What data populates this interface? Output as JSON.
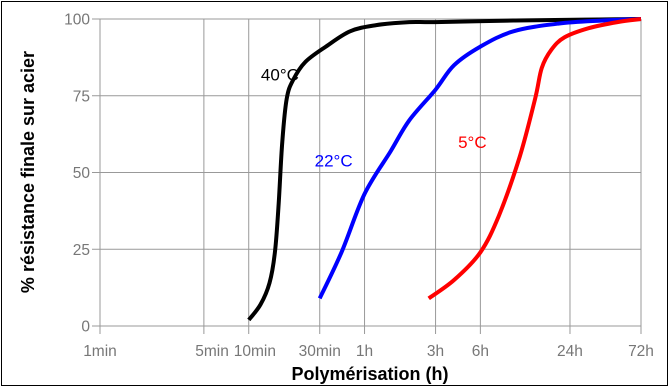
{
  "chart_data": {
    "type": "line",
    "title": "",
    "xlabel": "Polymérisation (h)",
    "ylabel": "% résistance finale sur acier",
    "x_scale": "log",
    "x_unit": "hours",
    "xlim": [
      0.0167,
      72
    ],
    "ylim": [
      0,
      100
    ],
    "x_ticks": [
      {
        "label": "1min",
        "value": 0.0167
      },
      {
        "label": "5min",
        "value": 0.0833
      },
      {
        "label": "10min",
        "value": 0.1667
      },
      {
        "label": "30min",
        "value": 0.5
      },
      {
        "label": "1h",
        "value": 1
      },
      {
        "label": "3h",
        "value": 3
      },
      {
        "label": "6h",
        "value": 6
      },
      {
        "label": "24h",
        "value": 24
      },
      {
        "label": "72h",
        "value": 72
      }
    ],
    "y_ticks": [
      0,
      25,
      50,
      75,
      100
    ],
    "grid": true,
    "series": [
      {
        "name": "40°C",
        "color": "#000000",
        "label_at": {
          "x": 0.27,
          "y": 80
        },
        "points": [
          [
            0.167,
            2
          ],
          [
            0.2,
            7
          ],
          [
            0.23,
            14
          ],
          [
            0.25,
            24
          ],
          [
            0.265,
            40
          ],
          [
            0.28,
            60
          ],
          [
            0.3,
            74
          ],
          [
            0.33,
            80
          ],
          [
            0.4,
            86
          ],
          [
            0.55,
            91
          ],
          [
            0.8,
            96
          ],
          [
            1.2,
            98
          ],
          [
            2,
            99
          ],
          [
            3,
            99
          ],
          [
            10,
            99.5
          ],
          [
            30,
            99.8
          ],
          [
            72,
            100
          ]
        ]
      },
      {
        "name": "22°C",
        "color": "#0000ff",
        "label_at": {
          "x": 0.62,
          "y": 52
        },
        "points": [
          [
            0.5,
            9
          ],
          [
            0.7,
            24
          ],
          [
            1,
            43
          ],
          [
            1.5,
            57
          ],
          [
            2,
            67
          ],
          [
            3,
            77
          ],
          [
            4,
            85
          ],
          [
            6,
            91
          ],
          [
            10,
            96
          ],
          [
            20,
            98.5
          ],
          [
            40,
            99.5
          ],
          [
            72,
            100
          ]
        ]
      },
      {
        "name": "5°C",
        "color": "#ff0000",
        "label_at": {
          "x": 5.3,
          "y": 58
        },
        "points": [
          [
            2.7,
            9
          ],
          [
            4,
            15
          ],
          [
            6,
            24
          ],
          [
            8,
            36
          ],
          [
            11,
            55
          ],
          [
            14,
            74
          ],
          [
            15.5,
            84
          ],
          [
            18,
            90
          ],
          [
            22,
            94
          ],
          [
            32,
            97
          ],
          [
            50,
            99
          ],
          [
            72,
            100
          ]
        ]
      }
    ]
  }
}
